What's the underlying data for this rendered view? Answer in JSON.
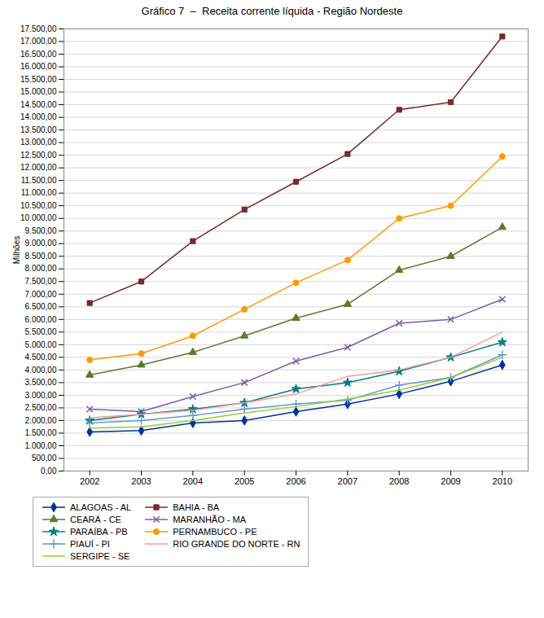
{
  "chart_data": {
    "type": "line",
    "title": "Gráfico 7  –  Receita corrente líquida - Região Nordeste",
    "ylabel": "Milhões",
    "x": [
      2002,
      2003,
      2004,
      2005,
      2006,
      2007,
      2008,
      2009,
      2010
    ],
    "series": [
      {
        "name": "ALAGOAS - AL",
        "color": "#003399",
        "marker": "diamond",
        "values": [
          1550,
          1600,
          1900,
          2000,
          2350,
          2650,
          3050,
          3550,
          4200
        ]
      },
      {
        "name": "BAHIA - BA",
        "color": "#7B2929",
        "marker": "square",
        "values": [
          6650,
          7500,
          9100,
          10350,
          11450,
          12550,
          14300,
          14600,
          17200
        ]
      },
      {
        "name": "CEARÁ - CE",
        "color": "#5C7A29",
        "marker": "triangle",
        "values": [
          3800,
          4200,
          4700,
          5350,
          6050,
          6600,
          7950,
          8500,
          9650
        ]
      },
      {
        "name": "MARANHÃO - MA",
        "color": "#7B5EA7",
        "marker": "times",
        "values": [
          2450,
          2350,
          2950,
          3500,
          4350,
          4900,
          5850,
          6000,
          6800
        ]
      },
      {
        "name": "PARAÍBA - PB",
        "color": "#008080",
        "marker": "star",
        "values": [
          2000,
          2250,
          2450,
          2700,
          3250,
          3500,
          3950,
          4500,
          5100
        ]
      },
      {
        "name": "PERNAMBUCO - PE",
        "color": "#FF9900",
        "marker": "circle",
        "values": [
          4400,
          4650,
          5350,
          6400,
          7450,
          8350,
          10000,
          10500,
          12450
        ]
      },
      {
        "name": "PIAUÍ - PI",
        "color": "#6699CC",
        "marker": "plus",
        "values": [
          1900,
          2000,
          2200,
          2450,
          2650,
          2800,
          3400,
          3700,
          4600
        ]
      },
      {
        "name": "RIO GRANDE DO NORTE - RN",
        "color": "#FF9999",
        "marker": "none",
        "values": [
          2100,
          2250,
          2400,
          2700,
          3050,
          3750,
          4000,
          4500,
          5500
        ]
      },
      {
        "name": "SERGIPE - SE",
        "color": "#99CC33",
        "marker": "none",
        "values": [
          1700,
          1750,
          2000,
          2300,
          2550,
          2850,
          3200,
          3700,
          4500
        ]
      }
    ],
    "xlim": [
      2001.5,
      2010.5
    ],
    "xticks": [
      2002,
      2003,
      2004,
      2005,
      2006,
      2007,
      2008,
      2009,
      2010
    ],
    "ylim": [
      0,
      17500
    ],
    "yticks": [
      {
        "value": 0,
        "label": "0,00"
      },
      {
        "value": 500,
        "label": "500,00"
      },
      {
        "value": 1000,
        "label": "1.000,00"
      },
      {
        "value": 1500,
        "label": "1.500,00"
      },
      {
        "value": 2000,
        "label": "2.000,00"
      },
      {
        "value": 2500,
        "label": "2.500,00"
      },
      {
        "value": 3000,
        "label": "3.000,00"
      },
      {
        "value": 3500,
        "label": "3.500,00"
      },
      {
        "value": 4000,
        "label": "4.000,00"
      },
      {
        "value": 4500,
        "label": "4.500,00"
      },
      {
        "value": 5000,
        "label": "5.000,00"
      },
      {
        "value": 5500,
        "label": "5.500,00"
      },
      {
        "value": 6000,
        "label": "6.000,00"
      },
      {
        "value": 6500,
        "label": "6.500,00"
      },
      {
        "value": 7000,
        "label": "7.000,00"
      },
      {
        "value": 7500,
        "label": "7.500,00"
      },
      {
        "value": 8000,
        "label": "8.000,00"
      },
      {
        "value": 8500,
        "label": "8.500,00"
      },
      {
        "value": 9000,
        "label": "9.000,00"
      },
      {
        "value": 9500,
        "label": "9.500,00"
      },
      {
        "value": 10000,
        "label": "10.000,00"
      },
      {
        "value": 10500,
        "label": "10.500,00"
      },
      {
        "value": 11000,
        "label": "11.000,00"
      },
      {
        "value": 11500,
        "label": "11.500,00"
      },
      {
        "value": 12000,
        "label": "12.000,00"
      },
      {
        "value": 12500,
        "label": "12.500,00"
      },
      {
        "value": 13000,
        "label": "13.000,00"
      },
      {
        "value": 13500,
        "label": "13.500,00"
      },
      {
        "value": 14000,
        "label": "14.000,00"
      },
      {
        "value": 14500,
        "label": "14.500,00"
      },
      {
        "value": 15000,
        "label": "15.000,00"
      },
      {
        "value": 15500,
        "label": "15.500,00"
      },
      {
        "value": 16000,
        "label": "16.000,00"
      },
      {
        "value": 16500,
        "label": "16.500,00"
      },
      {
        "value": 17000,
        "label": "17.000,00"
      },
      {
        "value": 17500,
        "label": "17.500,00"
      }
    ],
    "grid": true,
    "legend": "bottom"
  }
}
